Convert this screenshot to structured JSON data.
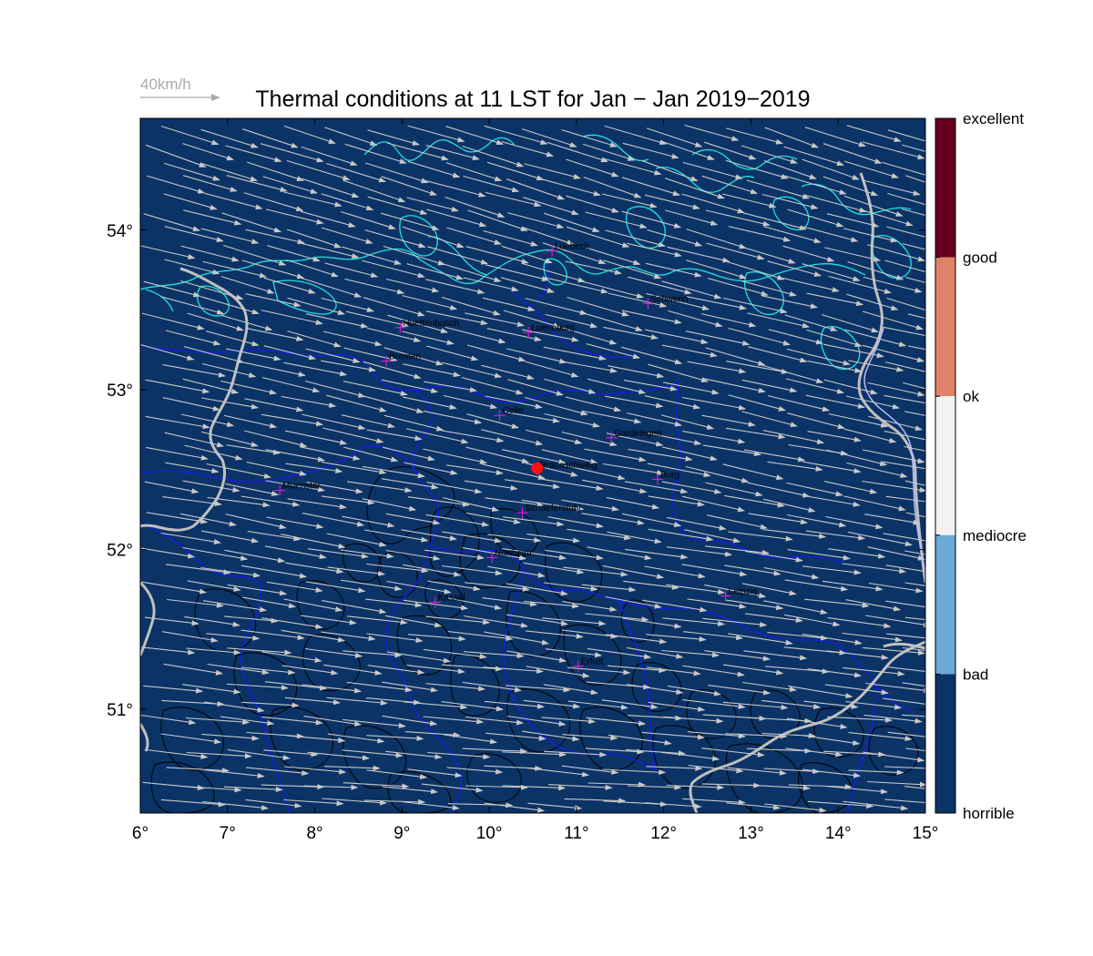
{
  "title": "Thermal conditions at 11 LST for Jan − Jan  2019−2019",
  "reference_vector": {
    "label": "40km/h",
    "speed_kmh": 40
  },
  "map": {
    "lon_range": [
      6,
      15
    ],
    "lat_range": [
      50.35,
      54.7
    ],
    "background_color": "#0b3366",
    "coastline_color": "#22e0e0",
    "border_color": "#1a1aee",
    "national_border_color": "#c0c0c0",
    "terrain_contour_color": "#000000",
    "arrow_color": "#c8c8c8",
    "city_marker_color": "#d020d0",
    "site_marker_color": "#ff1010",
    "condition_shown": "horrible"
  },
  "x_ticks": [
    "6°",
    "7°",
    "8°",
    "9°",
    "10°",
    "11°",
    "12°",
    "13°",
    "14°",
    "15°"
  ],
  "x_tick_values": [
    6,
    7,
    8,
    9,
    10,
    11,
    12,
    13,
    14,
    15
  ],
  "y_ticks": [
    "51°",
    "52°",
    "53°",
    "54°"
  ],
  "y_tick_values": [
    51,
    52,
    53,
    54
  ],
  "cities": [
    {
      "name": "Luebeck",
      "lon": 10.72,
      "lat": 53.87
    },
    {
      "name": "Schwerin",
      "lon": 11.82,
      "lat": 53.54
    },
    {
      "name": "Huettenbusch",
      "lon": 8.98,
      "lat": 53.39
    },
    {
      "name": "Lueneburg",
      "lon": 10.45,
      "lat": 53.36
    },
    {
      "name": "Bremen",
      "lon": 8.82,
      "lat": 53.18
    },
    {
      "name": "Celle",
      "lon": 10.12,
      "lat": 52.84
    },
    {
      "name": "Gardelegen",
      "lon": 11.4,
      "lat": 52.7
    },
    {
      "name": "Braunschweig",
      "lon": 10.55,
      "lat": 52.5
    },
    {
      "name": "Burg",
      "lon": 11.93,
      "lat": 52.44
    },
    {
      "name": "Muenster",
      "lon": 7.6,
      "lat": 52.37
    },
    {
      "name": "Schaeferstuhl",
      "lon": 10.38,
      "lat": 52.23
    },
    {
      "name": "Northeim",
      "lon": 10.03,
      "lat": 51.95
    },
    {
      "name": "Kassel",
      "lon": 9.38,
      "lat": 51.67
    },
    {
      "name": "Leipzig",
      "lon": 12.71,
      "lat": 51.71
    },
    {
      "name": "Erfurt",
      "lon": 11.02,
      "lat": 51.27
    }
  ],
  "site_marker": {
    "lon": 10.55,
    "lat": 52.51
  },
  "colorbar": {
    "categories": [
      {
        "label": "excellent",
        "color": "#67001f"
      },
      {
        "label": "good",
        "color": "#e0826a"
      },
      {
        "label": "ok",
        "color": "#f2f2f2"
      },
      {
        "label": "mediocre",
        "color": "#f2f2f2"
      },
      {
        "label": "bad",
        "color": "#6aaad4"
      },
      {
        "label": "horrible",
        "color": "#0b3366"
      }
    ]
  }
}
